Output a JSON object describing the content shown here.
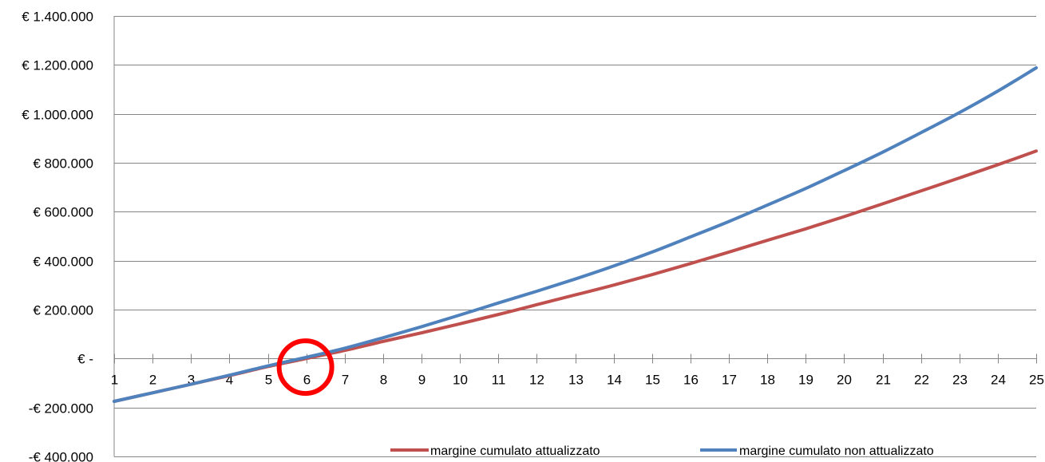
{
  "chart_data": {
    "type": "line",
    "title": "",
    "xlabel": "",
    "ylabel": "",
    "x": [
      1,
      2,
      3,
      4,
      5,
      6,
      7,
      8,
      9,
      10,
      11,
      12,
      13,
      14,
      15,
      16,
      17,
      18,
      19,
      20,
      21,
      22,
      23,
      24,
      25
    ],
    "x_tick_labels": [
      "1",
      "2",
      "3",
      "4",
      "5",
      "6",
      "7",
      "8",
      "9",
      "10",
      "11",
      "12",
      "13",
      "14",
      "15",
      "16",
      "17",
      "18",
      "19",
      "20",
      "21",
      "22",
      "23",
      "24",
      "25"
    ],
    "ylim": [
      -400000,
      1400000
    ],
    "y_ticks": [
      -400000,
      -200000,
      0,
      200000,
      400000,
      600000,
      800000,
      1000000,
      1200000,
      1400000
    ],
    "y_tick_labels": [
      "-€ 400.000",
      "-€ 200.000",
      "€ -",
      "€ 200.000",
      "€ 400.000",
      "€ 600.000",
      "€ 800.000",
      "€ 1.000.000",
      "€ 1.200.000",
      "€ 1.400.000"
    ],
    "grid": true,
    "legend_position": "bottom-right",
    "series": [
      {
        "name": "margine cumulato attualizzato",
        "color": "#c0504d",
        "values": [
          -175000,
          -140000,
          -105000,
          -70000,
          -33000,
          0,
          33000,
          70000,
          105000,
          142000,
          180000,
          220000,
          260000,
          300000,
          343000,
          388000,
          435000,
          483000,
          530000,
          580000,
          632000,
          685000,
          738000,
          792000,
          848000
        ]
      },
      {
        "name": "margine cumulato non attualizzato",
        "color": "#4f81bd",
        "values": [
          -175000,
          -140000,
          -105000,
          -68000,
          -30000,
          5000,
          42000,
          85000,
          130000,
          178000,
          227000,
          275000,
          325000,
          378000,
          435000,
          497000,
          560000,
          627000,
          695000,
          768000,
          843000,
          923000,
          1005000,
          1093000,
          1188000
        ]
      }
    ],
    "annotation": {
      "type": "circle",
      "color": "#ff0000",
      "x": 6,
      "y": -35000
    }
  }
}
